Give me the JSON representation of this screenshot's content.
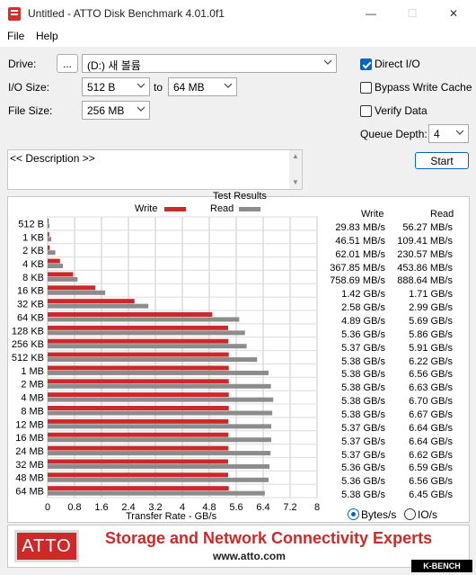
{
  "window": {
    "title": "Untitled - ATTO Disk Benchmark 4.01.0f1",
    "minimize_glyph": "—",
    "maximize_glyph": "☐",
    "close_glyph": "✕"
  },
  "menu": {
    "file": "File",
    "help": "Help"
  },
  "drive": {
    "label": "Drive:",
    "browse": "...",
    "value": "(D:) 새 볼륨"
  },
  "io_size": {
    "label": "I/O Size:",
    "from": "512 B",
    "to_label": "to",
    "to": "64 MB"
  },
  "file_size": {
    "label": "File Size:",
    "value": "256 MB"
  },
  "options": {
    "direct_io": {
      "label": "Direct I/O",
      "checked": true
    },
    "bypass_write_cache": {
      "label": "Bypass Write Cache",
      "checked": false
    },
    "verify_data": {
      "label": "Verify Data",
      "checked": false
    },
    "queue_depth": {
      "label": "Queue Depth:",
      "value": "4"
    }
  },
  "start_label": "Start",
  "description": {
    "text": "<< Description >>",
    "scroll_up": "▲",
    "scroll_down": "▼"
  },
  "results": {
    "title": "Test Results",
    "write_header": "Write",
    "read_header": "Read",
    "write_legend": "Write",
    "read_legend": "Read",
    "units": {
      "bytes": "Bytes/s",
      "io": "IO/s",
      "selected": "bytes"
    }
  },
  "colors": {
    "write": "#cc2a2a",
    "read": "#8c8c8c",
    "accent": "#0067c0"
  },
  "chart_data": {
    "type": "bar",
    "orientation": "horizontal",
    "title": "Test Results",
    "xlabel": "Transfer Rate - GB/s",
    "xlim": [
      0,
      8
    ],
    "xticks": [
      "0",
      "0.8",
      "1.6",
      "2.4",
      "3.2",
      "4",
      "4.8",
      "5.6",
      "6.4",
      "7.2",
      "8"
    ],
    "grid": true,
    "legend": "top",
    "categories": [
      "512 B",
      "1 KB",
      "2 KB",
      "4 KB",
      "8 KB",
      "16 KB",
      "32 KB",
      "64 KB",
      "128 KB",
      "256 KB",
      "512 KB",
      "1 MB",
      "2 MB",
      "4 MB",
      "8 MB",
      "12 MB",
      "16 MB",
      "24 MB",
      "32 MB",
      "48 MB",
      "64 MB"
    ],
    "series": [
      {
        "name": "Write",
        "color": "#cc2a2a",
        "values": [
          0.02983,
          0.04651,
          0.06201,
          0.36785,
          0.75869,
          1.42,
          2.58,
          4.89,
          5.36,
          5.37,
          5.38,
          5.38,
          5.38,
          5.38,
          5.38,
          5.37,
          5.37,
          5.37,
          5.36,
          5.36,
          5.38
        ],
        "labels": [
          "29.83 MB/s",
          "46.51 MB/s",
          "62.01 MB/s",
          "367.85 MB/s",
          "758.69 MB/s",
          "1.42 GB/s",
          "2.58 GB/s",
          "4.89 GB/s",
          "5.36 GB/s",
          "5.37 GB/s",
          "5.38 GB/s",
          "5.38 GB/s",
          "5.38 GB/s",
          "5.38 GB/s",
          "5.38 GB/s",
          "5.37 GB/s",
          "5.37 GB/s",
          "5.37 GB/s",
          "5.36 GB/s",
          "5.36 GB/s",
          "5.38 GB/s"
        ]
      },
      {
        "name": "Read",
        "color": "#8c8c8c",
        "values": [
          0.05627,
          0.10941,
          0.23057,
          0.45386,
          0.88864,
          1.71,
          2.99,
          5.69,
          5.86,
          5.91,
          6.22,
          6.56,
          6.63,
          6.7,
          6.67,
          6.64,
          6.64,
          6.62,
          6.59,
          6.56,
          6.45
        ],
        "labels": [
          "56.27 MB/s",
          "109.41 MB/s",
          "230.57 MB/s",
          "453.86 MB/s",
          "888.64 MB/s",
          "1.71 GB/s",
          "2.99 GB/s",
          "5.69 GB/s",
          "5.86 GB/s",
          "5.91 GB/s",
          "6.22 GB/s",
          "6.56 GB/s",
          "6.63 GB/s",
          "6.70 GB/s",
          "6.67 GB/s",
          "6.64 GB/s",
          "6.64 GB/s",
          "6.62 GB/s",
          "6.59 GB/s",
          "6.56 GB/s",
          "6.45 GB/s"
        ]
      }
    ]
  },
  "banner": {
    "logo": "ATTO",
    "tagline": "Storage and Network Connectivity Experts",
    "url": "www.atto.com",
    "watermark": "K-BENCH"
  }
}
